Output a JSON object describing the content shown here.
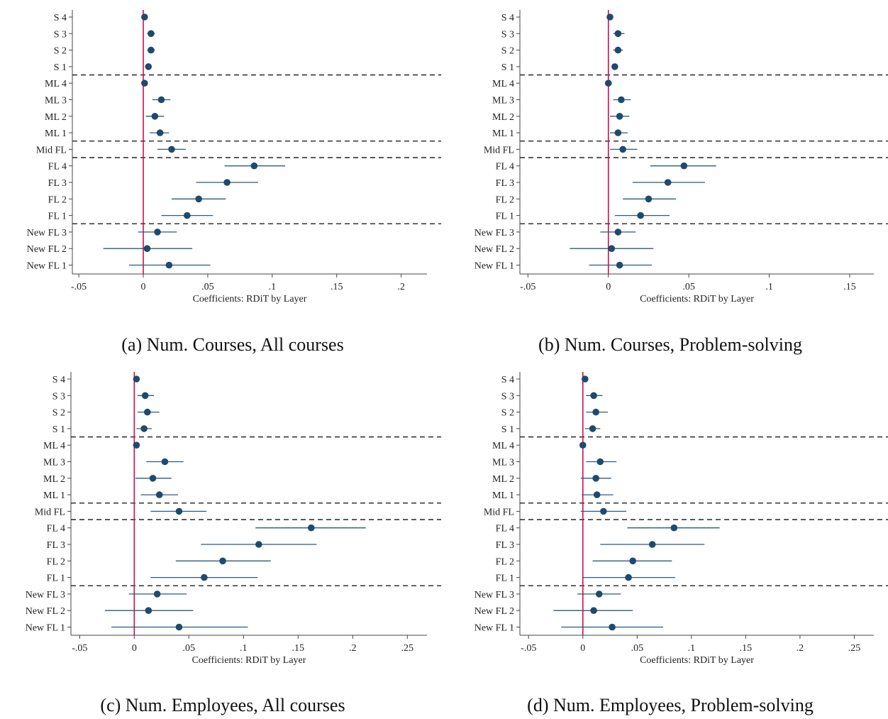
{
  "chart_data": [
    {
      "type": "scatter",
      "caption": "(a) Num. Courses, All courses",
      "xlabel": "Coefficients: RDiT by Layer",
      "xlim": [
        -0.055,
        0.22
      ],
      "xticks": [
        -0.05,
        0,
        0.05,
        0.1,
        0.15,
        0.2
      ],
      "xtick_labels": [
        "-.05",
        "0",
        ".05",
        ".1",
        ".15",
        ".2"
      ],
      "reference_line_x": 0,
      "categories": [
        "S 4",
        "S 3",
        "S 2",
        "S 1",
        "ML 4",
        "ML 3",
        "ML 2",
        "ML 1",
        "Mid FL",
        "FL 4",
        "FL 3",
        "FL 2",
        "FL 1",
        "New FL 3",
        "New FL 2",
        "New FL 1"
      ],
      "estimates": [
        0.001,
        0.006,
        0.006,
        0.004,
        0.001,
        0.014,
        0.009,
        0.013,
        0.022,
        0.086,
        0.065,
        0.043,
        0.034,
        0.011,
        0.003,
        0.02
      ],
      "ci_low": [
        -0.001,
        0.003,
        0.003,
        0.002,
        -0.001,
        0.007,
        0.002,
        0.005,
        0.011,
        0.063,
        0.041,
        0.022,
        0.014,
        -0.004,
        -0.031,
        -0.011
      ],
      "ci_high": [
        0.003,
        0.009,
        0.009,
        0.006,
        0.003,
        0.021,
        0.016,
        0.02,
        0.033,
        0.11,
        0.089,
        0.064,
        0.054,
        0.026,
        0.038,
        0.052
      ],
      "separators_after": [
        "S 1",
        "ML 1",
        "Mid FL",
        "FL 1"
      ]
    },
    {
      "type": "scatter",
      "caption": "(b) Num. Courses, Problem-solving",
      "xlabel": "Coefficients: RDiT by Layer",
      "xlim": [
        -0.055,
        0.165
      ],
      "xticks": [
        -0.05,
        0,
        0.05,
        0.1,
        0.15
      ],
      "xtick_labels": [
        "-.05",
        "0",
        ".05",
        ".1",
        ".15"
      ],
      "reference_line_x": 0,
      "categories": [
        "S 4",
        "S 3",
        "S 2",
        "S 1",
        "ML 4",
        "ML 3",
        "ML 2",
        "ML 1",
        "Mid FL",
        "FL 4",
        "FL 3",
        "FL 2",
        "FL 1",
        "New FL 3",
        "New FL 2",
        "New FL 1"
      ],
      "estimates": [
        0.001,
        0.006,
        0.006,
        0.004,
        0.0,
        0.008,
        0.007,
        0.006,
        0.009,
        0.047,
        0.037,
        0.025,
        0.02,
        0.006,
        0.002,
        0.007
      ],
      "ci_low": [
        -0.001,
        0.003,
        0.003,
        0.002,
        -0.001,
        0.003,
        0.001,
        0.001,
        0.001,
        0.026,
        0.015,
        0.009,
        0.004,
        -0.005,
        -0.024,
        -0.012
      ],
      "ci_high": [
        0.003,
        0.01,
        0.009,
        0.006,
        0.001,
        0.014,
        0.013,
        0.012,
        0.018,
        0.067,
        0.06,
        0.042,
        0.038,
        0.017,
        0.028,
        0.027
      ],
      "separators_after": [
        "S 1",
        "ML 1",
        "Mid FL",
        "FL 1"
      ]
    },
    {
      "type": "scatter",
      "caption": "(c) Num. Employees, All courses",
      "xlabel": "Coefficients: RDiT by Layer",
      "xlim": [
        -0.058,
        0.268
      ],
      "xticks": [
        -0.05,
        0,
        0.05,
        0.1,
        0.15,
        0.2,
        0.25
      ],
      "xtick_labels": [
        "-.05",
        "0",
        ".05",
        ".1",
        ".15",
        ".2",
        ".25"
      ],
      "reference_line_x": 0,
      "categories": [
        "S 4",
        "S 3",
        "S 2",
        "S 1",
        "ML 4",
        "ML 3",
        "ML 2",
        "ML 1",
        "Mid FL",
        "FL 4",
        "FL 3",
        "FL 2",
        "FL 1",
        "New FL 3",
        "New FL 2",
        "New FL 1"
      ],
      "estimates": [
        0.002,
        0.01,
        0.012,
        0.009,
        0.002,
        0.028,
        0.017,
        0.023,
        0.041,
        0.162,
        0.114,
        0.081,
        0.064,
        0.021,
        0.013,
        0.041
      ],
      "ci_low": [
        -0.001,
        0.003,
        0.003,
        0.002,
        -0.001,
        0.011,
        0.001,
        0.006,
        0.015,
        0.111,
        0.061,
        0.038,
        0.015,
        -0.005,
        -0.027,
        -0.021
      ],
      "ci_high": [
        0.005,
        0.018,
        0.023,
        0.016,
        0.005,
        0.045,
        0.034,
        0.04,
        0.066,
        0.212,
        0.167,
        0.125,
        0.113,
        0.048,
        0.054,
        0.104
      ],
      "separators_after": [
        "S 1",
        "ML 1",
        "Mid FL",
        "FL 1"
      ]
    },
    {
      "type": "scatter",
      "caption": "(d) Num. Employees, Problem-solving",
      "xlabel": "Coefficients: RDiT by Layer",
      "xlim": [
        -0.058,
        0.268
      ],
      "xticks": [
        -0.05,
        0,
        0.05,
        0.1,
        0.15,
        0.2,
        0.25
      ],
      "xtick_labels": [
        "-.05",
        "0",
        ".05",
        ".1",
        ".15",
        ".2",
        ".25"
      ],
      "reference_line_x": 0,
      "categories": [
        "S 4",
        "S 3",
        "S 2",
        "S 1",
        "ML 4",
        "ML 3",
        "ML 2",
        "ML 1",
        "Mid FL",
        "FL 4",
        "FL 3",
        "FL 2",
        "FL 1",
        "New FL 3",
        "New FL 2",
        "New FL 1"
      ],
      "estimates": [
        0.002,
        0.01,
        0.012,
        0.009,
        0.0,
        0.016,
        0.012,
        0.013,
        0.019,
        0.084,
        0.064,
        0.046,
        0.042,
        0.015,
        0.01,
        0.027
      ],
      "ci_low": [
        -0.001,
        0.003,
        0.003,
        0.002,
        -0.001,
        0.003,
        -0.002,
        -0.001,
        -0.002,
        0.041,
        0.016,
        0.009,
        0.0,
        -0.005,
        -0.027,
        -0.02
      ],
      "ci_high": [
        0.005,
        0.018,
        0.023,
        0.016,
        0.001,
        0.031,
        0.026,
        0.028,
        0.04,
        0.126,
        0.112,
        0.082,
        0.085,
        0.035,
        0.046,
        0.074
      ],
      "separators_after": [
        "S 1",
        "ML 1",
        "Mid FL",
        "FL 1"
      ]
    }
  ],
  "colors": {
    "marker": "#1f4a6e",
    "ci_line": "#2b5a80",
    "reference_line": "#c8104e",
    "separator": "#333333",
    "axis": "#444444",
    "text": "#222222"
  }
}
